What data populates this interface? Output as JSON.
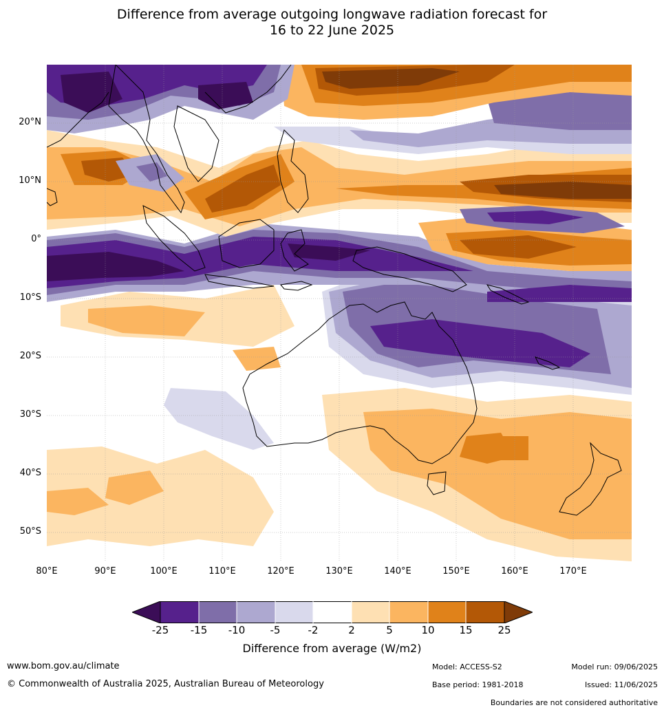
{
  "title_line1": "Difference from average outgoing longwave radiation forecast for",
  "title_line2": "16 to 22 June 2025",
  "map": {
    "lon_range": [
      80,
      180
    ],
    "lat_range": [
      -55,
      30
    ],
    "lat_ticks": [
      "20°N",
      "10°N",
      "0°",
      "10°S",
      "20°S",
      "30°S",
      "40°S",
      "50°S"
    ],
    "lat_values": [
      20,
      10,
      0,
      -10,
      -20,
      -30,
      -40,
      -50
    ],
    "lon_ticks": [
      "80°E",
      "90°E",
      "100°E",
      "110°E",
      "120°E",
      "130°E",
      "140°E",
      "150°E",
      "160°E",
      "170°E"
    ],
    "lon_values": [
      80,
      90,
      100,
      110,
      120,
      130,
      140,
      150,
      160,
      170
    ]
  },
  "colorbar": {
    "ticks": [
      "-25",
      "-15",
      "-10",
      "-5",
      "-2",
      "2",
      "5",
      "10",
      "15",
      "25"
    ],
    "colors": [
      "#3b0d57",
      "#56218c",
      "#7f6ea9",
      "#ada8d0",
      "#d9d9ec",
      "#ffffff",
      "#fee0b3",
      "#fbb560",
      "#e0821a",
      "#b35806",
      "#7f3b08"
    ],
    "label": "Difference from average (W/m2)"
  },
  "footer": {
    "website": "www.bom.gov.au/climate",
    "copyright": "© Commonwealth of Australia 2025, Australian Bureau of Meteorology",
    "model": "Model: ACCESS-S2",
    "base_period": "Base period: 1981-2018",
    "model_run": "Model run: 09/06/2025",
    "issued": "Issued: 11/06/2025",
    "disclaimer": "Boundaries are not considered authoritative"
  }
}
